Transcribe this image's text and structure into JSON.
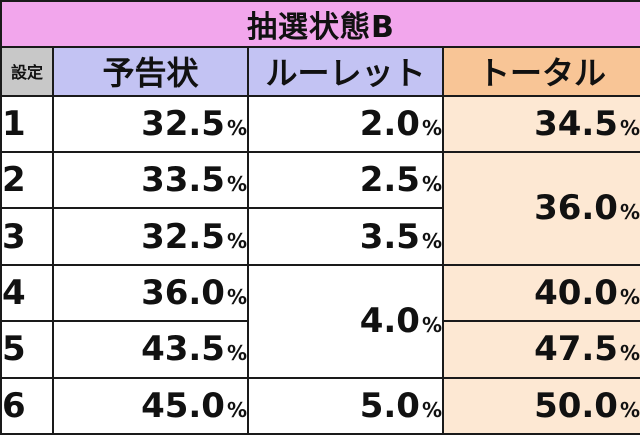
{
  "title": "抽選状態B",
  "headers": {
    "setting": "設定",
    "yokoku": "予告状",
    "roulette": "ルーレット",
    "total": "トータル"
  },
  "percent_sign": "%",
  "rows": [
    {
      "setting": "1",
      "yokoku": "32.5",
      "roulette": "2.0",
      "total": "34.5"
    },
    {
      "setting": "2",
      "yokoku": "33.5",
      "roulette": "2.5",
      "total": "36.0"
    },
    {
      "setting": "3",
      "yokoku": "32.5",
      "roulette": "3.5",
      "total": "36.0"
    },
    {
      "setting": "4",
      "yokoku": "36.0",
      "roulette": "4.0",
      "total": "40.0"
    },
    {
      "setting": "5",
      "yokoku": "43.5",
      "roulette": "4.0",
      "total": "47.5"
    },
    {
      "setting": "6",
      "yokoku": "45.0",
      "roulette": "5.0",
      "total": "50.0"
    }
  ],
  "colors": {
    "title_bg": "#f2a6ec",
    "setting_header_bg": "#c8c8c8",
    "column_header_bg": "#c3c3f3",
    "total_header_bg": "#f8c596",
    "total_cell_bg": "#fde8d3"
  }
}
